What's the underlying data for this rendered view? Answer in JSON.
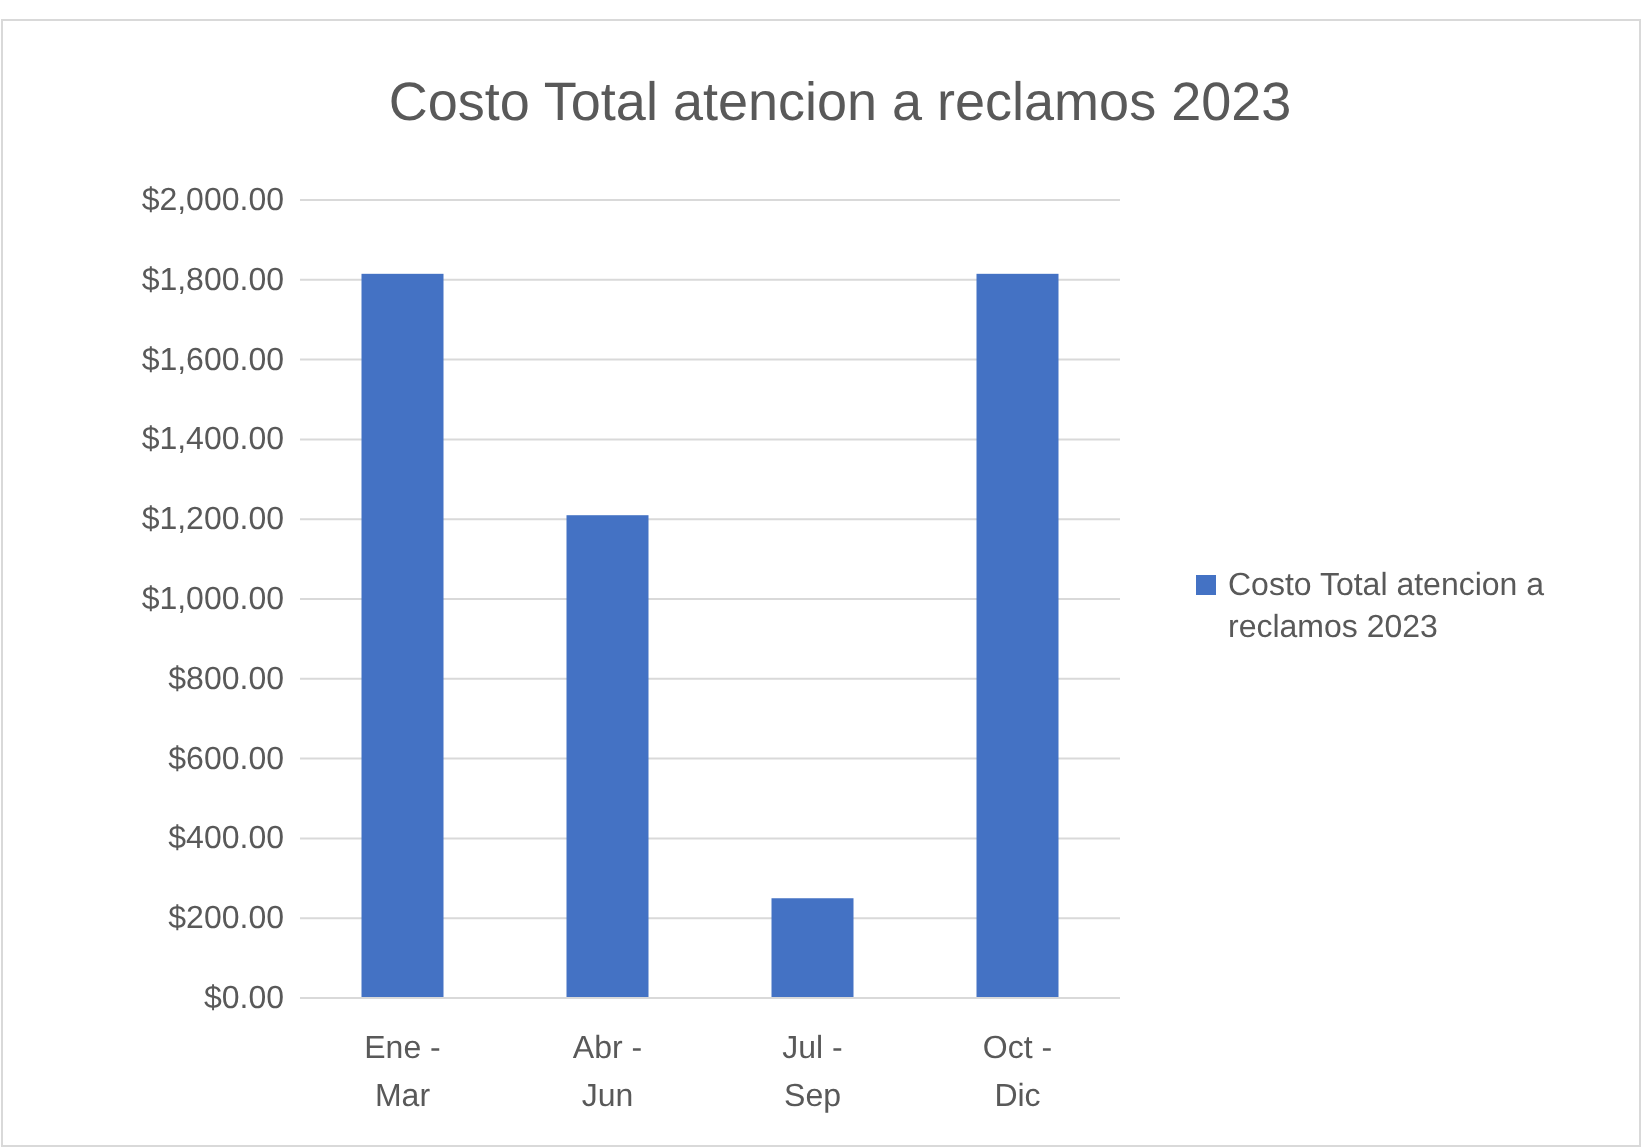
{
  "chart_data": {
    "type": "bar",
    "title": "Costo Total atencion a reclamos 2023",
    "categories": [
      "Ene - Mar",
      "Abr - Jun",
      "Jul - Sep",
      "Oct - Dic"
    ],
    "series": [
      {
        "name": "Costo Total atencion a reclamos 2023",
        "color": "#4472c4",
        "values": [
          1815,
          1210,
          250,
          1815
        ]
      }
    ],
    "ylim": [
      0,
      2000
    ],
    "yticks": [
      {
        "value": 0,
        "label": "$0.00"
      },
      {
        "value": 200,
        "label": "$200.00"
      },
      {
        "value": 400,
        "label": "$400.00"
      },
      {
        "value": 600,
        "label": "$600.00"
      },
      {
        "value": 800,
        "label": "$800.00"
      },
      {
        "value": 1000,
        "label": "$1,000.00"
      },
      {
        "value": 1200,
        "label": "$1,200.00"
      },
      {
        "value": 1400,
        "label": "$1,400.00"
      },
      {
        "value": 1600,
        "label": "$1,600.00"
      },
      {
        "value": 1800,
        "label": "$1,800.00"
      },
      {
        "value": 2000,
        "label": "$2,000.00"
      }
    ],
    "grid": "y",
    "legend": "right"
  }
}
